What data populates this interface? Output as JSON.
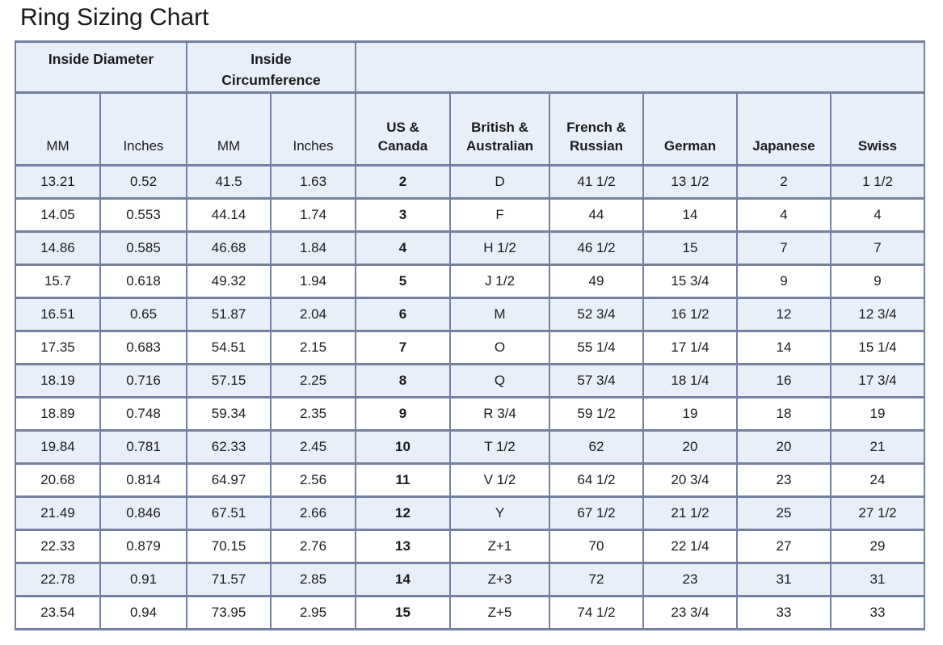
{
  "title": "Ring Sizing Chart",
  "colors": {
    "border": "#74809f",
    "row_alt_fill": "#e8eff8",
    "row_fill": "#ffffff",
    "text": "#1c1c1e",
    "background": "#ffffff"
  },
  "table": {
    "group_headers": [
      {
        "label": "Inside Diameter"
      },
      {
        "label": "Inside Circumference"
      },
      {
        "label": ""
      }
    ],
    "columns": [
      "MM",
      "Inches",
      "MM",
      "Inches",
      "US & Canada",
      "British & Australian",
      "French & Russian",
      "German",
      "Japanese",
      "Swiss"
    ],
    "rows": [
      [
        "13.21",
        "0.52",
        "41.5",
        "1.63",
        "2",
        "D",
        "41 1/2",
        "13 1/2",
        "2",
        "1 1/2"
      ],
      [
        "14.05",
        "0.553",
        "44.14",
        "1.74",
        "3",
        "F",
        "44",
        "14",
        "4",
        "4"
      ],
      [
        "14.86",
        "0.585",
        "46.68",
        "1.84",
        "4",
        "H 1/2",
        "46 1/2",
        "15",
        "7",
        "7"
      ],
      [
        "15.7",
        "0.618",
        "49.32",
        "1.94",
        "5",
        "J 1/2",
        "49",
        "15 3/4",
        "9",
        "9"
      ],
      [
        "16.51",
        "0.65",
        "51.87",
        "2.04",
        "6",
        "M",
        "52 3/4",
        "16 1/2",
        "12",
        "12 3/4"
      ],
      [
        "17.35",
        "0.683",
        "54.51",
        "2.15",
        "7",
        "O",
        "55 1/4",
        "17 1/4",
        "14",
        "15 1/4"
      ],
      [
        "18.19",
        "0.716",
        "57.15",
        "2.25",
        "8",
        "Q",
        "57 3/4",
        "18 1/4",
        "16",
        "17 3/4"
      ],
      [
        "18.89",
        "0.748",
        "59.34",
        "2.35",
        "9",
        "R 3/4",
        "59 1/2",
        "19",
        "18",
        "19"
      ],
      [
        "19.84",
        "0.781",
        "62.33",
        "2.45",
        "10",
        "T 1/2",
        "62",
        "20",
        "20",
        "21"
      ],
      [
        "20.68",
        "0.814",
        "64.97",
        "2.56",
        "11",
        "V 1/2",
        "64 1/2",
        "20 3/4",
        "23",
        "24"
      ],
      [
        "21.49",
        "0.846",
        "67.51",
        "2.66",
        "12",
        "Y",
        "67 1/2",
        "21 1/2",
        "25",
        "27 1/2"
      ],
      [
        "22.33",
        "0.879",
        "70.15",
        "2.76",
        "13",
        "Z+1",
        "70",
        "22 1/4",
        "27",
        "29"
      ],
      [
        "22.78",
        "0.91",
        "71.57",
        "2.85",
        "14",
        "Z+3",
        "72",
        "23",
        "31",
        "31"
      ],
      [
        "23.54",
        "0.94",
        "73.95",
        "2.95",
        "15",
        "Z+5",
        "74 1/2",
        "23 3/4",
        "33",
        "33"
      ]
    ]
  }
}
